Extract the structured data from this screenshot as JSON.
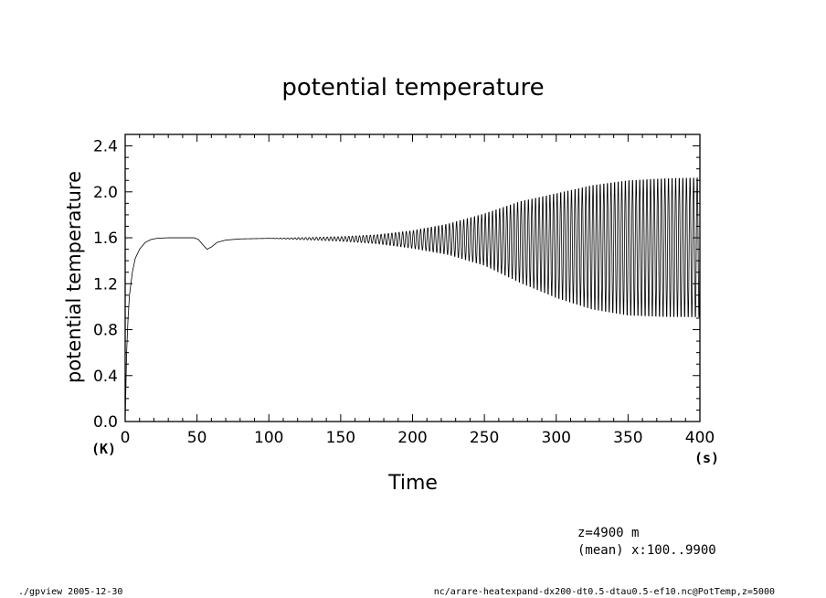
{
  "chart_data": {
    "type": "line",
    "title": "potential temperature",
    "xlabel": "Time",
    "ylabel": "potential temperature",
    "x_unit": "(s)",
    "y_unit": "(K)",
    "xlim": [
      0,
      400
    ],
    "ylim": [
      0,
      2.5
    ],
    "x_ticks": [
      0,
      50,
      100,
      150,
      200,
      250,
      300,
      350,
      400
    ],
    "x_tick_labels": [
      "0",
      "50",
      "100",
      "150",
      "200",
      "250",
      "300",
      "350",
      "400"
    ],
    "y_ticks": [
      0,
      0.4,
      0.8,
      1.2,
      1.6,
      2.0,
      2.4
    ],
    "y_tick_labels": [
      "0.0",
      "0.4",
      "0.8",
      "1.2",
      "1.6",
      "2.0",
      "2.4"
    ],
    "grid": false,
    "series": [
      {
        "name": "",
        "color": "#000000",
        "mean_curve": [
          [
            0,
            0.0
          ],
          [
            1,
            0.6
          ],
          [
            2,
            0.9
          ],
          [
            3,
            1.1
          ],
          [
            5,
            1.3
          ],
          [
            7,
            1.42
          ],
          [
            10,
            1.5
          ],
          [
            14,
            1.56
          ],
          [
            18,
            1.585
          ],
          [
            22,
            1.595
          ],
          [
            30,
            1.6
          ],
          [
            40,
            1.6
          ],
          [
            48,
            1.6
          ],
          [
            51,
            1.585
          ],
          [
            54,
            1.54
          ],
          [
            57,
            1.5
          ],
          [
            60,
            1.52
          ],
          [
            64,
            1.56
          ],
          [
            70,
            1.58
          ],
          [
            80,
            1.59
          ],
          [
            100,
            1.595
          ],
          [
            150,
            1.59
          ],
          [
            200,
            1.585
          ],
          [
            250,
            1.57
          ],
          [
            300,
            1.555
          ],
          [
            350,
            1.545
          ],
          [
            400,
            1.54
          ]
        ],
        "oscillation": {
          "period": 2.5,
          "upper_envelope": [
            [
              0,
              0.0
            ],
            [
              100,
              0.0
            ],
            [
              150,
              0.02
            ],
            [
              175,
              0.04
            ],
            [
              200,
              0.08
            ],
            [
              225,
              0.15
            ],
            [
              250,
              0.25
            ],
            [
              275,
              0.37
            ],
            [
              300,
              0.45
            ],
            [
              325,
              0.53
            ],
            [
              350,
              0.58
            ],
            [
              375,
              0.6
            ],
            [
              400,
              0.61
            ]
          ],
          "lower_envelope": [
            [
              0,
              0.0
            ],
            [
              100,
              0.0
            ],
            [
              150,
              0.02
            ],
            [
              175,
              0.04
            ],
            [
              200,
              0.08
            ],
            [
              225,
              0.13
            ],
            [
              250,
              0.22
            ],
            [
              275,
              0.37
            ],
            [
              300,
              0.5
            ],
            [
              325,
              0.6
            ],
            [
              350,
              0.65
            ],
            [
              375,
              0.66
            ],
            [
              400,
              0.66
            ]
          ]
        }
      }
    ]
  },
  "annotations": {
    "z_level": "z=4900  m",
    "mean_note": "(mean) x:100..9900"
  },
  "footer": {
    "program": "./gpview  2005-12-30",
    "source": "nc/arare-heatexpand-dx200-dt0.5-dtau0.5-ef10.nc@PotTemp,z=5000"
  }
}
